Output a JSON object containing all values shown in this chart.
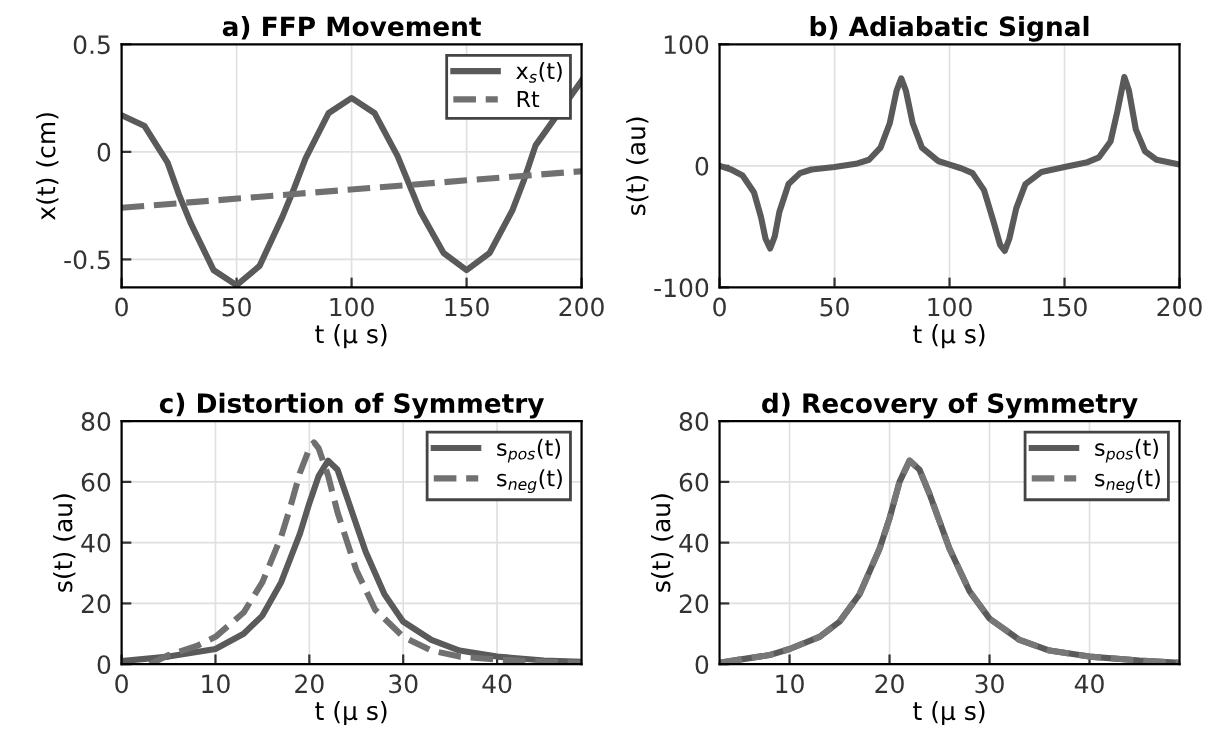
{
  "chart_data": [
    {
      "type": "line",
      "title": "a) FFP Movement",
      "xlabel": "t (μ s)",
      "ylabel": "x(t) (cm)",
      "xlim": [
        0,
        200
      ],
      "ylim": [
        -0.63,
        0.5
      ],
      "xticks": [
        0,
        50,
        100,
        150,
        200
      ],
      "yticks": [
        -0.5,
        0,
        0.5
      ],
      "grid": true,
      "legend": "top right",
      "series": [
        {
          "name": "x$_{s}$(t)",
          "color": "#5a5a5a",
          "line_style": "solid",
          "x": [
            0,
            10,
            20,
            25,
            30,
            40,
            50,
            60,
            70,
            75,
            80,
            90,
            100,
            110,
            120,
            125,
            130,
            140,
            150,
            160,
            170,
            175,
            180,
            200
          ],
          "values": [
            0.17,
            0.12,
            -0.05,
            -0.2,
            -0.33,
            -0.55,
            -0.62,
            -0.53,
            -0.3,
            -0.17,
            -0.03,
            0.18,
            0.25,
            0.18,
            -0.02,
            -0.15,
            -0.28,
            -0.47,
            -0.55,
            -0.47,
            -0.27,
            -0.13,
            0.03,
            0.33
          ]
        },
        {
          "name": "Rt",
          "color": "#707070",
          "line_style": "dashed",
          "x": [
            0,
            200
          ],
          "values": [
            -0.26,
            -0.09
          ]
        }
      ]
    },
    {
      "type": "line",
      "title": "b) Adiabatic Signal",
      "xlabel": "t (μ s)",
      "ylabel": "s(t) (au)",
      "xlim": [
        0,
        200
      ],
      "ylim": [
        -100,
        100
      ],
      "xticks": [
        0,
        50,
        100,
        150,
        200
      ],
      "yticks": [
        -100,
        0,
        100
      ],
      "grid": true,
      "series": [
        {
          "color": "#5a5a5a",
          "line_style": "solid",
          "x": [
            0,
            5,
            10,
            15,
            18,
            20,
            22,
            24,
            26,
            30,
            35,
            40,
            50,
            60,
            65,
            70,
            74,
            77,
            79,
            81,
            84,
            88,
            95,
            100,
            105,
            110,
            115,
            119,
            122,
            124,
            126,
            129,
            133,
            140,
            150,
            160,
            165,
            170,
            173,
            176,
            178,
            181,
            185,
            190,
            200
          ],
          "values": [
            0,
            -3,
            -8,
            -22,
            -42,
            -60,
            -68,
            -58,
            -38,
            -15,
            -6,
            -3,
            -1,
            2,
            5,
            15,
            35,
            62,
            72,
            62,
            35,
            15,
            4,
            1,
            -2,
            -6,
            -20,
            -45,
            -65,
            -70,
            -60,
            -35,
            -15,
            -5,
            -1,
            3,
            7,
            20,
            45,
            73,
            62,
            30,
            12,
            5,
            1
          ]
        }
      ]
    },
    {
      "type": "line",
      "title": "c) Distortion of Symmetry",
      "xlabel": "t (μ s)",
      "ylabel": "s(t) (au)",
      "xlim": [
        0,
        49
      ],
      "ylim": [
        0,
        80
      ],
      "xticks": [
        0,
        10,
        20,
        30,
        40
      ],
      "yticks": [
        0,
        20,
        40,
        60,
        80
      ],
      "grid": true,
      "legend": "top right",
      "series": [
        {
          "name": "s$_{pos}$(t)",
          "color": "#5a5a5a",
          "line_style": "solid",
          "x": [
            0,
            5,
            10,
            13,
            15,
            17,
            19,
            20,
            21,
            22,
            23,
            24,
            26,
            28,
            30,
            33,
            36,
            40,
            45,
            49
          ],
          "values": [
            1,
            2.5,
            5,
            10,
            16,
            27,
            43,
            53,
            62,
            67,
            64,
            55,
            37,
            23,
            14,
            8,
            4.5,
            2.5,
            1.2,
            0.8
          ]
        },
        {
          "name": "s$_{neg}$(t)",
          "color": "#707070",
          "line_style": "dashed",
          "x": [
            3,
            5,
            8,
            10,
            13,
            15,
            17,
            18,
            19,
            20,
            20.5,
            21,
            22,
            23,
            25,
            27,
            30,
            33,
            36,
            40,
            45,
            49
          ],
          "values": [
            0,
            3,
            6,
            9,
            17,
            27,
            42,
            52,
            63,
            71,
            73,
            71,
            62,
            50,
            31,
            18,
            9,
            4.5,
            2.5,
            1.5,
            0.8,
            0.5
          ]
        }
      ]
    },
    {
      "type": "line",
      "title": "d) Recovery of Symmetry",
      "xlabel": "t (μ s)",
      "ylabel": "s(t) (au)",
      "xlim": [
        3,
        49
      ],
      "ylim": [
        0,
        80
      ],
      "xticks": [
        10,
        20,
        30,
        40
      ],
      "yticks": [
        0,
        20,
        40,
        60,
        80
      ],
      "grid": true,
      "legend": "top right",
      "series": [
        {
          "name": "s$_{pos}$(t)",
          "color": "#5a5a5a",
          "line_style": "solid",
          "x": [
            3,
            5,
            8,
            10,
            13,
            15,
            17,
            19,
            20,
            21,
            22,
            23,
            24,
            26,
            28,
            30,
            33,
            36,
            40,
            45,
            49
          ],
          "values": [
            0.5,
            1.5,
            3,
            5,
            9,
            14,
            23,
            38,
            48,
            60,
            67,
            64,
            56,
            38,
            24,
            15,
            8,
            4.5,
            2.5,
            1.2,
            0.5
          ]
        },
        {
          "name": "s$_{neg}$(t)",
          "color": "#777777",
          "line_style": "dashed",
          "x": [
            3,
            5,
            8,
            10,
            13,
            15,
            17,
            19,
            20,
            21,
            22,
            23,
            24,
            26,
            28,
            30,
            33,
            36,
            40,
            45,
            49
          ],
          "values": [
            0.5,
            1.5,
            3,
            5,
            9,
            14,
            23,
            38,
            48,
            60,
            67,
            64,
            56,
            38,
            24,
            15,
            8,
            4.5,
            2.5,
            1.2,
            0.5
          ]
        }
      ]
    }
  ]
}
